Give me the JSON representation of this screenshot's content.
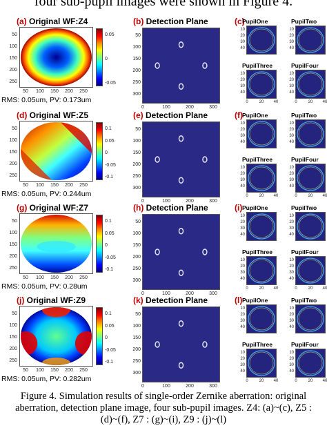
{
  "header": {
    "text": "four sub-pupil images were shown in Figure 4."
  },
  "rows": [
    {
      "wf_letter": "(a)",
      "wf_title": "Original WF:Z4",
      "det_letter": "(b)",
      "det_title": "Detection Plane",
      "sub_letter": "(c)",
      "rms": "RMS: 0.05um, PV: 0.173um",
      "cbar_ticks": [
        "0.05",
        "0",
        "-0.05"
      ]
    },
    {
      "wf_letter": "(d)",
      "wf_title": "Original WF:Z5",
      "det_letter": "(e)",
      "det_title": "Detection Plane",
      "sub_letter": "(f)",
      "rms": "RMS: 0.05um, PV: 0.244um",
      "cbar_ticks": [
        "0.1",
        "0.05",
        "0",
        "-0.05",
        "-0.1"
      ]
    },
    {
      "wf_letter": "(g)",
      "wf_title": "Original WF:Z7",
      "det_letter": "(h)",
      "det_title": "Detection Plane",
      "sub_letter": "(i)",
      "rms": "RMS: 0.05um, PV: 0.28um",
      "cbar_ticks": [
        "0.1",
        "0.05",
        "0",
        "-0.05",
        "-0.1"
      ]
    },
    {
      "wf_letter": "(j)",
      "wf_title": "Original WF:Z9",
      "det_letter": "(k)",
      "det_title": "Detection Plane",
      "sub_letter": "(l)",
      "rms": "RMS: 0.05um, PV: 0.282um",
      "cbar_ticks": [
        "0.1",
        "0.05",
        "0",
        "-0.05",
        "-0.1"
      ]
    }
  ],
  "sub_titles": [
    "PupilOne",
    "PupilTwo",
    "PupilThree",
    "PupilFour"
  ],
  "wf_yticks": [
    "50",
    "100",
    "150",
    "200",
    "250"
  ],
  "wf_xticks": [
    "50",
    "100",
    "150",
    "200",
    "250"
  ],
  "det_yticks": [
    "50",
    "100",
    "150",
    "200",
    "250",
    "300"
  ],
  "det_xticks": [
    "0",
    "100",
    "200",
    "300"
  ],
  "sub_yticks": [
    "10",
    "20",
    "30",
    "40"
  ],
  "sub_xticks": [
    "0",
    "20",
    "40"
  ],
  "caption": {
    "line1": "Figure 4. Simulation results of single-order Zernike aberration: original",
    "line2": "aberration, detection plane image, four sub-pupil images. Z4: (a)~(c),  Z5 :",
    "line3": "(d)~(f),  Z7 : (g)~(i),  Z9 : (j)~(l)"
  },
  "colors": {
    "label_red": "#c00000",
    "detector_bg": "#2a2a86",
    "subpupil_bg": "#24247e"
  }
}
